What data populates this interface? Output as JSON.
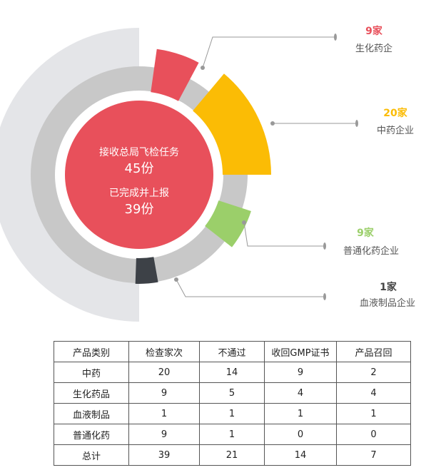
{
  "chart_data": [
    {
      "type": "pie",
      "title": "",
      "center_lines": [
        "接收总局飞检任务",
        "45份",
        "已完成并上报",
        "39份"
      ],
      "series": [
        {
          "name": "生化药企",
          "count_label": "9家",
          "value": 9,
          "color": "#e8505b"
        },
        {
          "name": "中药企业",
          "count_label": "20家",
          "value": 20,
          "color": "#fbbc05"
        },
        {
          "name": "普通化药企业",
          "count_label": "9家",
          "value": 9,
          "color": "#9bcf6a"
        },
        {
          "name": "血液制品企业",
          "count_label": "1家",
          "value": 1,
          "color": "#3d4147"
        }
      ],
      "colors": {
        "center": "#e8505b",
        "ring": "#c8c8c8",
        "outer_band": "#e4e5e8",
        "leader": "#999999",
        "count_text_dark": "#444444"
      }
    },
    {
      "type": "table",
      "columns": [
        "产品类别",
        "检查家次",
        "不通过",
        "收回GMP证书",
        "产品召回"
      ],
      "rows": [
        [
          "中药",
          "20",
          "14",
          "9",
          "2"
        ],
        [
          "生化药品",
          "9",
          "5",
          "4",
          "4"
        ],
        [
          "血液制品",
          "1",
          "1",
          "1",
          "1"
        ],
        [
          "普通化药",
          "9",
          "1",
          "0",
          "0"
        ],
        [
          "总计",
          "39",
          "21",
          "14",
          "7"
        ]
      ]
    }
  ]
}
